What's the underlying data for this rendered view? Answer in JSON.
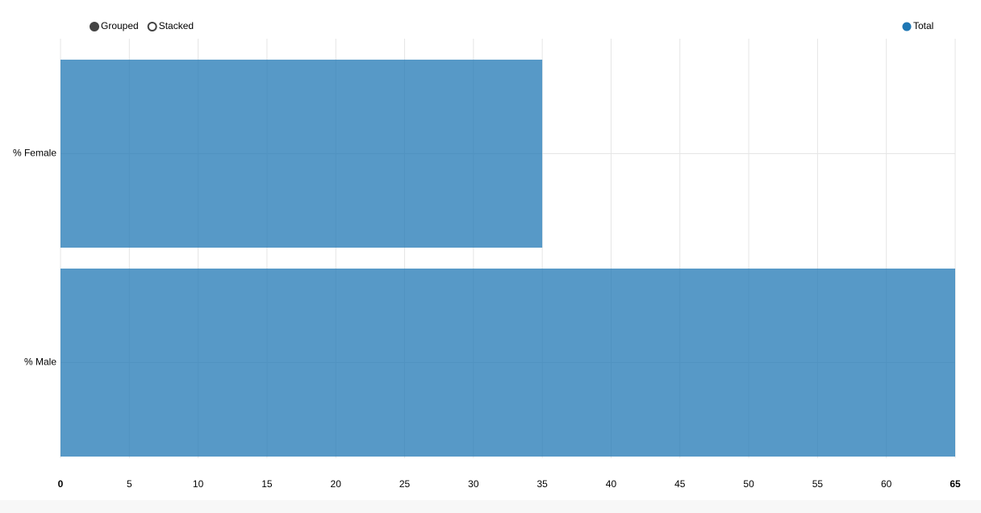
{
  "chart_data": {
    "type": "bar",
    "orientation": "horizontal",
    "categories": [
      "% Female",
      "% Male"
    ],
    "series": [
      {
        "name": "Total",
        "color": "#1f77b4",
        "values": [
          35,
          65
        ]
      }
    ],
    "xlim": [
      0,
      65
    ],
    "xticks": [
      0,
      5,
      10,
      15,
      20,
      25,
      30,
      35,
      40,
      45,
      50,
      55,
      60,
      65
    ],
    "grid": true,
    "legend": "top-right",
    "controls": [
      {
        "label": "Grouped",
        "selected": true
      },
      {
        "label": "Stacked",
        "selected": false
      }
    ]
  }
}
